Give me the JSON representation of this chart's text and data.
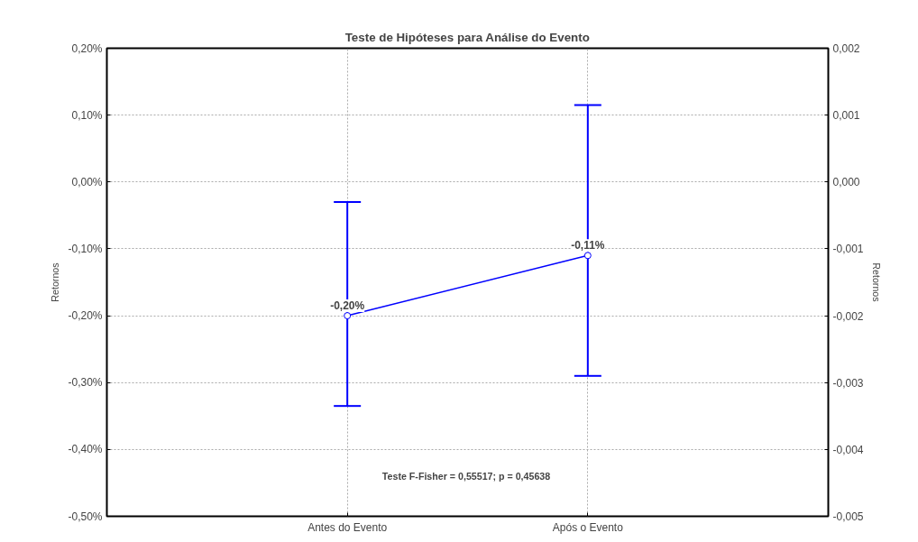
{
  "chart_data": {
    "type": "line",
    "title": "Teste de Hipóteses para Análise do Evento",
    "ylabel": "Retornos",
    "y2label": "Retornos",
    "categories": [
      "Antes do Evento",
      "Após o Evento"
    ],
    "series": [
      {
        "color": "#0000ff",
        "values": [
          -0.2,
          -0.11
        ],
        "value_labels": [
          "-0,20%",
          "-0,11%"
        ],
        "errors": [
          [
            -0.335,
            -0.03
          ],
          [
            -0.29,
            0.115
          ]
        ]
      }
    ],
    "ylim": [
      -0.5,
      0.2
    ],
    "yticks": [
      {
        "value": -0.5,
        "label": "-0,50%"
      },
      {
        "value": -0.4,
        "label": "-0,40%"
      },
      {
        "value": -0.3,
        "label": "-0,30%"
      },
      {
        "value": -0.2,
        "label": "-0,20%"
      },
      {
        "value": -0.1,
        "label": "-0,10%"
      },
      {
        "value": 0,
        "label": "0,00%"
      },
      {
        "value": 0.1,
        "label": "0,10%"
      },
      {
        "value": 0.2,
        "label": "0,20%"
      }
    ],
    "y2lim": [
      -0.005,
      0.002
    ],
    "y2ticks": [
      {
        "value": -0.005,
        "label": "-0,005"
      },
      {
        "value": -0.004,
        "label": "-0,004"
      },
      {
        "value": -0.003,
        "label": "-0,003"
      },
      {
        "value": -0.002,
        "label": "-0,002"
      },
      {
        "value": -0.001,
        "label": "-0,001"
      },
      {
        "value": 0,
        "label": "0,000"
      },
      {
        "value": 0.001,
        "label": "0,001"
      },
      {
        "value": 0.002,
        "label": "0,002"
      }
    ],
    "annotations": [
      "Teste F-Fisher = 0,55517;  p = 0,45638"
    ],
    "grid": true,
    "marker": "circle",
    "line_style": "solid"
  }
}
